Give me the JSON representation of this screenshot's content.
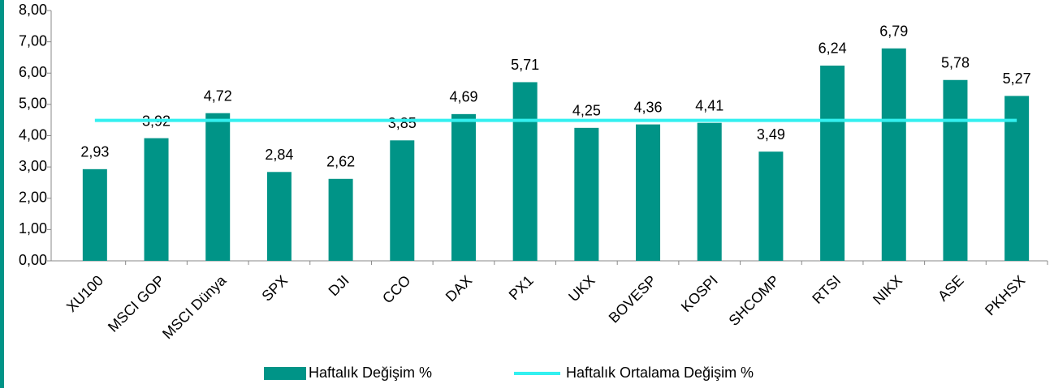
{
  "chart_data": {
    "type": "bar",
    "categories": [
      "XU100",
      "MSCI GOP",
      "MSCI Dünya",
      "SPX",
      "DJI",
      "CCO",
      "DAX",
      "PX1",
      "UKX",
      "BOVESP",
      "KOSPI",
      "SHCOMP",
      "RTSI",
      "NIKX",
      "ASE",
      "PKHSX"
    ],
    "series": [
      {
        "name": "Haftalık Değişim %",
        "type": "bar",
        "color": "#009487",
        "values": [
          2.93,
          3.92,
          4.72,
          2.84,
          2.62,
          3.85,
          4.69,
          5.71,
          4.25,
          4.36,
          4.41,
          3.49,
          6.24,
          6.79,
          5.78,
          5.27
        ],
        "value_labels": [
          "2,93",
          "3,92",
          "4,72",
          "2,84",
          "2,62",
          "3,85",
          "4,69",
          "5,71",
          "4,25",
          "4,36",
          "4,41",
          "3,49",
          "6,24",
          "6,79",
          "5,78",
          "5,27"
        ]
      },
      {
        "name": "Haftalık Ortalama Değişim %",
        "type": "line",
        "color": "#33f0f0",
        "values": [
          4.49,
          4.49,
          4.49,
          4.49,
          4.49,
          4.49,
          4.49,
          4.49,
          4.49,
          4.49,
          4.49,
          4.49,
          4.49,
          4.49,
          4.49,
          4.49
        ]
      }
    ],
    "ylim": [
      0,
      8
    ],
    "yticks": [
      {
        "value": 0,
        "label": "0,00"
      },
      {
        "value": 1,
        "label": "1,00"
      },
      {
        "value": 2,
        "label": "2,00"
      },
      {
        "value": 3,
        "label": "3,00"
      },
      {
        "value": 4,
        "label": "4,00"
      },
      {
        "value": 5,
        "label": "5,00"
      },
      {
        "value": 6,
        "label": "6,00"
      },
      {
        "value": 7,
        "label": "7,00"
      },
      {
        "value": 8,
        "label": "8,00"
      }
    ]
  }
}
